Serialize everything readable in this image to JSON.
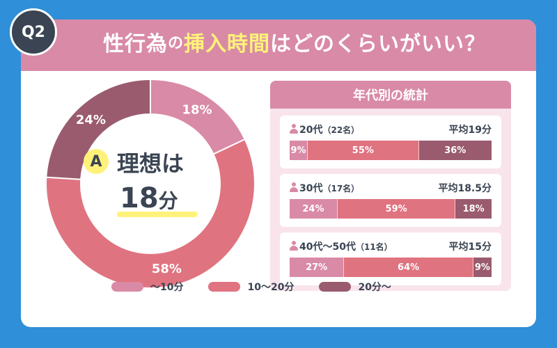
{
  "question_badge": "Q2",
  "title": {
    "part1": "性行為",
    "no1": "の",
    "part2": "挿入時間",
    "part3": "はどのくらいがいい？"
  },
  "answer": {
    "badge": "A",
    "label": "理想は",
    "value": "18",
    "unit": "分"
  },
  "colors": {
    "background": "#2f8fd8",
    "header": "#d98aa6",
    "highlight": "#fff27a",
    "lt10": "#d98aa6",
    "10to20": "#e07380",
    "gt20": "#9a5b6e",
    "text": "#3a4452"
  },
  "stats": {
    "title": "年代別の統計",
    "groups": [
      {
        "label": "20代",
        "count": "（22名）",
        "avg": "平均19分",
        "values": [
          "9%",
          "55%",
          "36%"
        ]
      },
      {
        "label": "30代",
        "count": "（17名）",
        "avg": "平均18.5分",
        "values": [
          "24%",
          "59%",
          "18%"
        ]
      },
      {
        "label": "40代～50代",
        "count": "（11名）",
        "avg": "平均15分",
        "values": [
          "27%",
          "64%",
          "9%"
        ]
      }
    ]
  },
  "legend": [
    "～10分",
    "10～20分",
    "20分～"
  ],
  "chart_data": [
    {
      "type": "pie",
      "categories": [
        "～10分",
        "10～20分",
        "20分～"
      ],
      "values": [
        18,
        58,
        24
      ],
      "labels": [
        "18%",
        "58%",
        "24%"
      ],
      "donut": true
    },
    {
      "type": "bar",
      "stacked": true,
      "orientation": "horizontal",
      "categories": [
        "20代",
        "30代",
        "40代～50代"
      ],
      "series": [
        {
          "name": "～10分",
          "values": [
            9,
            24,
            27
          ]
        },
        {
          "name": "10～20分",
          "values": [
            55,
            59,
            64
          ]
        },
        {
          "name": "20分～",
          "values": [
            36,
            18,
            9
          ]
        }
      ]
    }
  ]
}
